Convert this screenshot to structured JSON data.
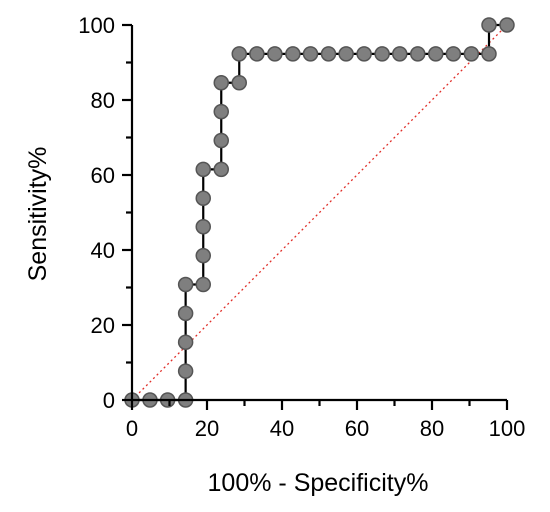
{
  "chart_data": {
    "type": "line",
    "xlabel": "100% - Specificity%",
    "ylabel": "Sensitivity%",
    "xlim": [
      0,
      100
    ],
    "ylim": [
      0,
      100
    ],
    "x_ticks": [
      "0",
      "20",
      "40",
      "60",
      "80",
      "100"
    ],
    "y_ticks": [
      "0",
      "20",
      "40",
      "60",
      "80",
      "100"
    ],
    "grid": false,
    "series": [
      {
        "style": "step",
        "line_color": "#000000",
        "marker_color": "#7f7f7f",
        "points": [
          [
            0,
            0
          ],
          [
            4.8,
            0
          ],
          [
            9.5,
            0
          ],
          [
            14.3,
            0
          ],
          [
            14.3,
            7.7
          ],
          [
            14.3,
            15.4
          ],
          [
            14.3,
            23.1
          ],
          [
            14.3,
            30.8
          ],
          [
            19,
            30.8
          ],
          [
            19,
            38.5
          ],
          [
            19,
            46.2
          ],
          [
            19,
            53.8
          ],
          [
            19,
            61.5
          ],
          [
            23.8,
            61.5
          ],
          [
            23.8,
            69.2
          ],
          [
            23.8,
            76.9
          ],
          [
            23.8,
            84.6
          ],
          [
            28.6,
            84.6
          ],
          [
            28.6,
            92.3
          ],
          [
            33.3,
            92.3
          ],
          [
            38.1,
            92.3
          ],
          [
            42.9,
            92.3
          ],
          [
            47.6,
            92.3
          ],
          [
            52.4,
            92.3
          ],
          [
            57.1,
            92.3
          ],
          [
            61.9,
            92.3
          ],
          [
            66.7,
            92.3
          ],
          [
            71.4,
            92.3
          ],
          [
            76.2,
            92.3
          ],
          [
            81,
            92.3
          ],
          [
            85.7,
            92.3
          ],
          [
            90.5,
            92.3
          ],
          [
            95.2,
            92.3
          ],
          [
            95.2,
            100
          ],
          [
            100,
            100
          ]
        ]
      },
      {
        "style": "reference",
        "line_color": "#e0302a",
        "points": [
          [
            0,
            0
          ],
          [
            100,
            100
          ]
        ]
      }
    ]
  }
}
